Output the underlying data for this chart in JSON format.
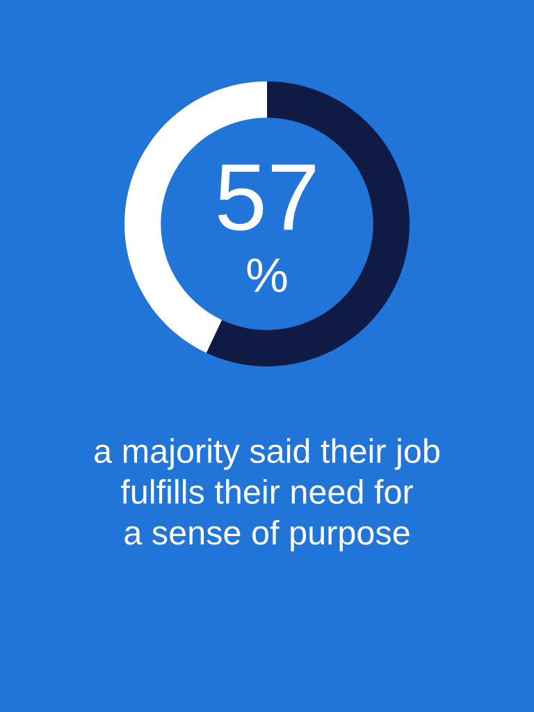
{
  "chart_data": {
    "type": "donut",
    "categories": [
      null,
      null
    ],
    "values": [
      57,
      43
    ],
    "colors": [
      "#0f1a45",
      "#ffffff"
    ],
    "value_labels": [
      "57",
      null
    ],
    "annotations": [
      "%",
      "a majority said their job\nfulfills their need for\na sense of purpose"
    ]
  }
}
